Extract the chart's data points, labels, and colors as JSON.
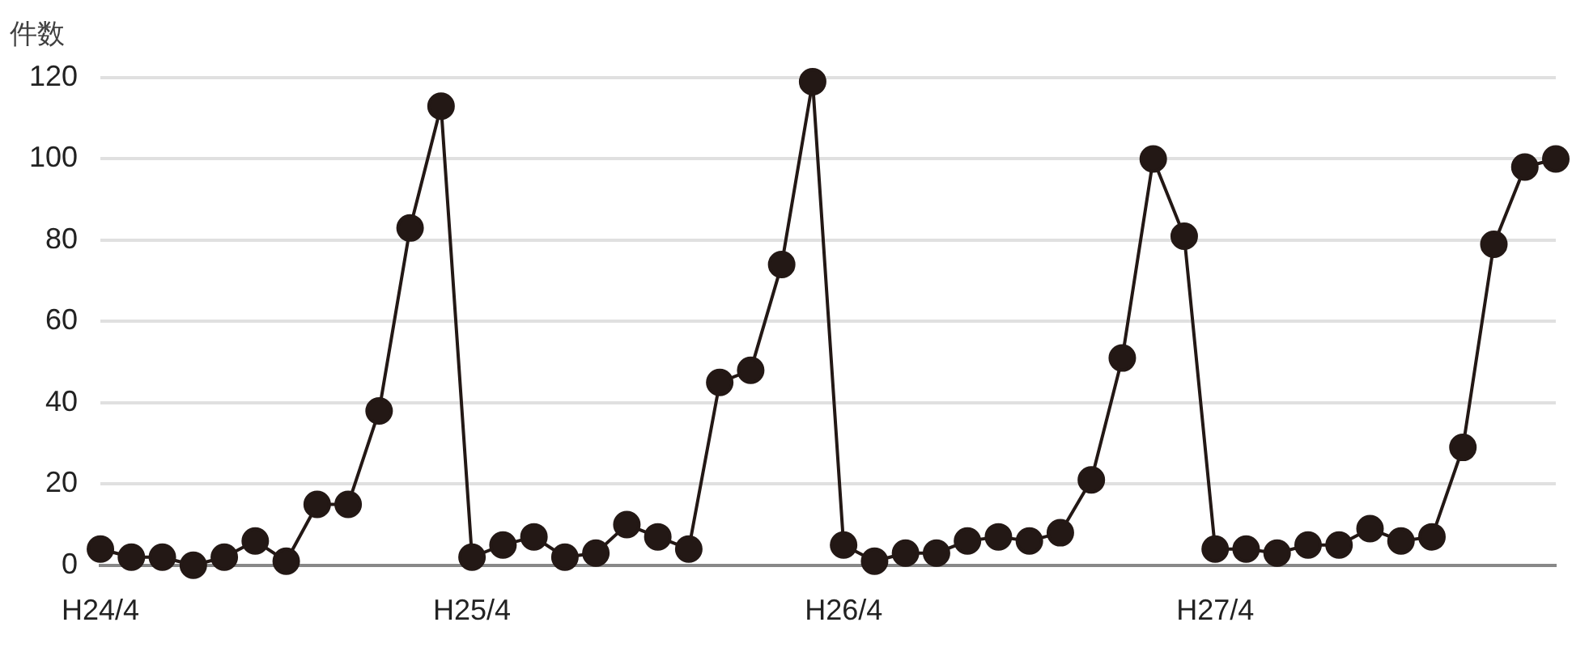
{
  "chart_data": {
    "type": "line",
    "ylabel": "件数",
    "categories": [
      "H24/4",
      null,
      null,
      null,
      null,
      null,
      null,
      null,
      null,
      null,
      null,
      null,
      "H25/4",
      null,
      null,
      null,
      null,
      null,
      null,
      null,
      null,
      null,
      null,
      null,
      "H26/4",
      null,
      null,
      null,
      null,
      null,
      null,
      null,
      null,
      null,
      null,
      null,
      "H27/4",
      null,
      null,
      null,
      null,
      null,
      null,
      null,
      null,
      null,
      null,
      null
    ],
    "series": [
      {
        "color": "#231815",
        "values": [
          4,
          2,
          2,
          0,
          2,
          6,
          1,
          15,
          15,
          38,
          83,
          113,
          2,
          5,
          7,
          2,
          3,
          10,
          7,
          4,
          45,
          48,
          74,
          119,
          5,
          1,
          3,
          3,
          6,
          7,
          6,
          8,
          21,
          51,
          100,
          81,
          4,
          4,
          3,
          5,
          5,
          9,
          6,
          7,
          29,
          79,
          98,
          100
        ]
      }
    ],
    "ylim": [
      0,
      120
    ],
    "yticks": [
      0,
      20,
      40,
      60,
      80,
      100,
      120
    ],
    "grid": "y",
    "legend": false,
    "marker": "circle",
    "line_style": "solid"
  }
}
